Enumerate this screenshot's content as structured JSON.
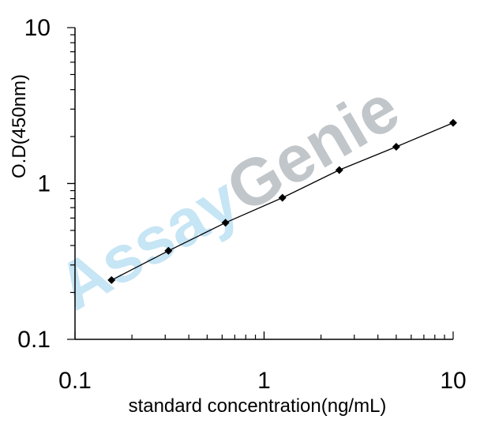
{
  "chart_data": {
    "type": "line",
    "xlabel": "standard concentration(ng/mL)",
    "ylabel": "O.D(450nm)",
    "x_scale": "log",
    "y_scale": "log",
    "xlim": [
      0.1,
      10
    ],
    "ylim": [
      0.1,
      10
    ],
    "x_tick_labels": [
      "0.1",
      "1",
      "10"
    ],
    "y_tick_labels": [
      "10",
      "1",
      "0.1"
    ],
    "grid": false,
    "legend": "none",
    "series": [
      {
        "x": [
          0.156,
          0.312,
          0.625,
          1.25,
          2.5,
          5,
          10
        ],
        "y": [
          0.24,
          0.37,
          0.56,
          0.81,
          1.22,
          1.72,
          2.45
        ],
        "color": "#000000",
        "marker": "diamond"
      }
    ]
  },
  "watermark": {
    "part1": "Assay",
    "part2": "Genie",
    "color1": "#a8d8f0",
    "color2": "#a0a8ae"
  }
}
